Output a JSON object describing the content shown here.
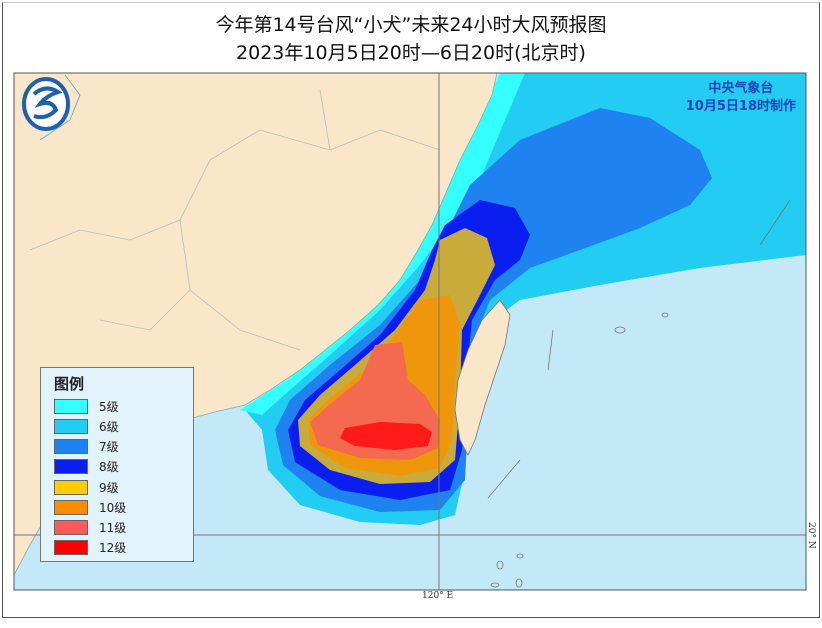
{
  "title": "今年第14号台风“小犬”未来24小时大风预报图",
  "subtitle": "2023年10月5日20时—6日20时(北京时)",
  "agency": {
    "name": "中央气象台",
    "issued": "10月5日18时制作"
  },
  "legend": {
    "title": "图例",
    "items": [
      {
        "label": "5级",
        "color": "#33ffff"
      },
      {
        "label": "6级",
        "color": "#22ccf2"
      },
      {
        "label": "7级",
        "color": "#1e82f0"
      },
      {
        "label": "8级",
        "color": "#0a1ef0"
      },
      {
        "label": "9级",
        "color": "#ffcc00"
      },
      {
        "label": "10级",
        "color": "#ff8c00"
      },
      {
        "label": "11级",
        "color": "#ff5a5a"
      },
      {
        "label": "12级",
        "color": "#ff0000"
      }
    ]
  },
  "axes": {
    "lon_label": "120° E",
    "lat_label": "20° N"
  },
  "colors": {
    "land": "#fae6c8",
    "sea": "#c3e9f9",
    "logo": "#1f5fae"
  },
  "logo": "cma-logo"
}
